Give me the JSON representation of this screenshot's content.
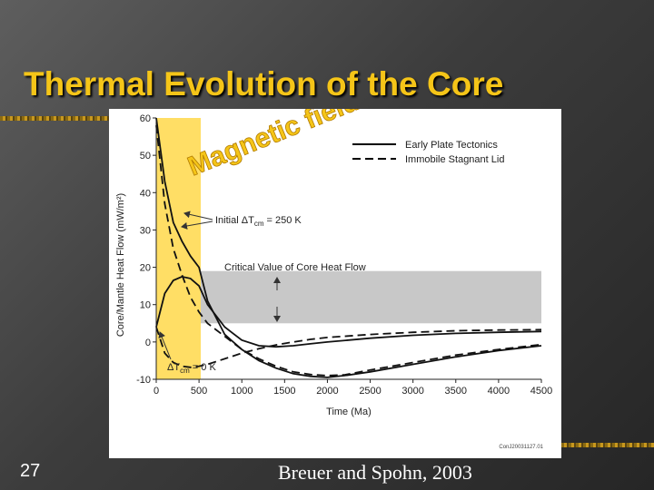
{
  "slide": {
    "title": "Thermal Evolution of the Core",
    "slide_number": "27",
    "credit": "Breuer and Spohn, 2003"
  },
  "colors": {
    "title": "#f5c518",
    "highlight_band": "#ffd84a",
    "critical_band": "#c8c8c8",
    "magnetic_text": "#f5c518",
    "magnetic_text_outline": "#b07a00"
  },
  "chart_data": {
    "type": "line",
    "xlabel": "Time (Ma)",
    "ylabel": "Core/Mantle Heat Flow (mW/m²)",
    "xlim": [
      0,
      4500
    ],
    "ylim": [
      -10,
      60
    ],
    "xticks": [
      0,
      500,
      1000,
      1500,
      2000,
      2500,
      3000,
      3500,
      4000,
      4500
    ],
    "yticks": [
      -10,
      0,
      10,
      20,
      30,
      40,
      50,
      60
    ],
    "grid": false,
    "legend_position": "top-right",
    "legend": [
      {
        "label": "Early Plate Tectonics",
        "style": "solid"
      },
      {
        "label": "Immobile Stagnant Lid",
        "style": "dashed"
      }
    ],
    "highlight_band": {
      "x": [
        0,
        520
      ]
    },
    "critical_band": {
      "y": [
        5,
        19
      ]
    },
    "annotations": {
      "initial_delta_t": "Initial ΔT",
      "initial_subscript": "cm",
      "initial_value": " = 250 K",
      "critical": "Critical Value of Core Heat Flow",
      "zero_delta_t": "ΔT",
      "zero_subscript": "cm",
      "zero_value": " = 0 K"
    },
    "overlay_text": "Magnetic field",
    "figure_code": "ConJ20031127.01",
    "series": [
      {
        "style": "solid",
        "x": [
          0,
          100,
          200,
          300,
          400,
          500,
          600,
          800,
          1000,
          1200,
          1400,
          1600,
          1800,
          2000,
          2200,
          2500,
          3000,
          3500,
          4000,
          4500
        ],
        "values": [
          60,
          43,
          32,
          27,
          23,
          20,
          11,
          2,
          -2,
          -5,
          -7,
          -8.5,
          -9.2,
          -9.5,
          -9,
          -8,
          -6,
          -4,
          -2.3,
          -1
        ]
      },
      {
        "style": "dashed",
        "x": [
          0,
          100,
          200,
          300,
          400,
          500,
          600,
          800,
          1000,
          1200,
          1400,
          1600,
          1800,
          2000,
          2200,
          2500,
          3000,
          3500,
          4000,
          4500
        ],
        "values": [
          58,
          37,
          25,
          18,
          12,
          8,
          5,
          1.5,
          -2,
          -4.5,
          -6.5,
          -8,
          -8.7,
          -9,
          -8.8,
          -7.5,
          -5.5,
          -3.5,
          -2,
          -0.7
        ]
      },
      {
        "style": "solid",
        "x": [
          0,
          100,
          200,
          300,
          400,
          500,
          600,
          800,
          1000,
          1200,
          1400,
          1600,
          1800,
          2000,
          2500,
          3000,
          3500,
          4000,
          4500
        ],
        "values": [
          4,
          13,
          16.5,
          17.5,
          17,
          15,
          10,
          4,
          0.5,
          -1,
          -1.3,
          -1,
          -0.5,
          0,
          1,
          1.8,
          2.3,
          2.6,
          2.8
        ]
      },
      {
        "style": "dashed",
        "x": [
          0,
          100,
          200,
          300,
          400,
          500,
          600,
          800,
          1000,
          1200,
          1400,
          1600,
          1800,
          2000,
          2500,
          3000,
          3500,
          4000,
          4500
        ],
        "values": [
          4,
          -3,
          -5.5,
          -6.5,
          -6.8,
          -6.5,
          -6,
          -4.5,
          -3,
          -1.8,
          -0.8,
          0,
          0.7,
          1.2,
          2,
          2.6,
          3,
          3.2,
          3.3
        ]
      }
    ]
  }
}
